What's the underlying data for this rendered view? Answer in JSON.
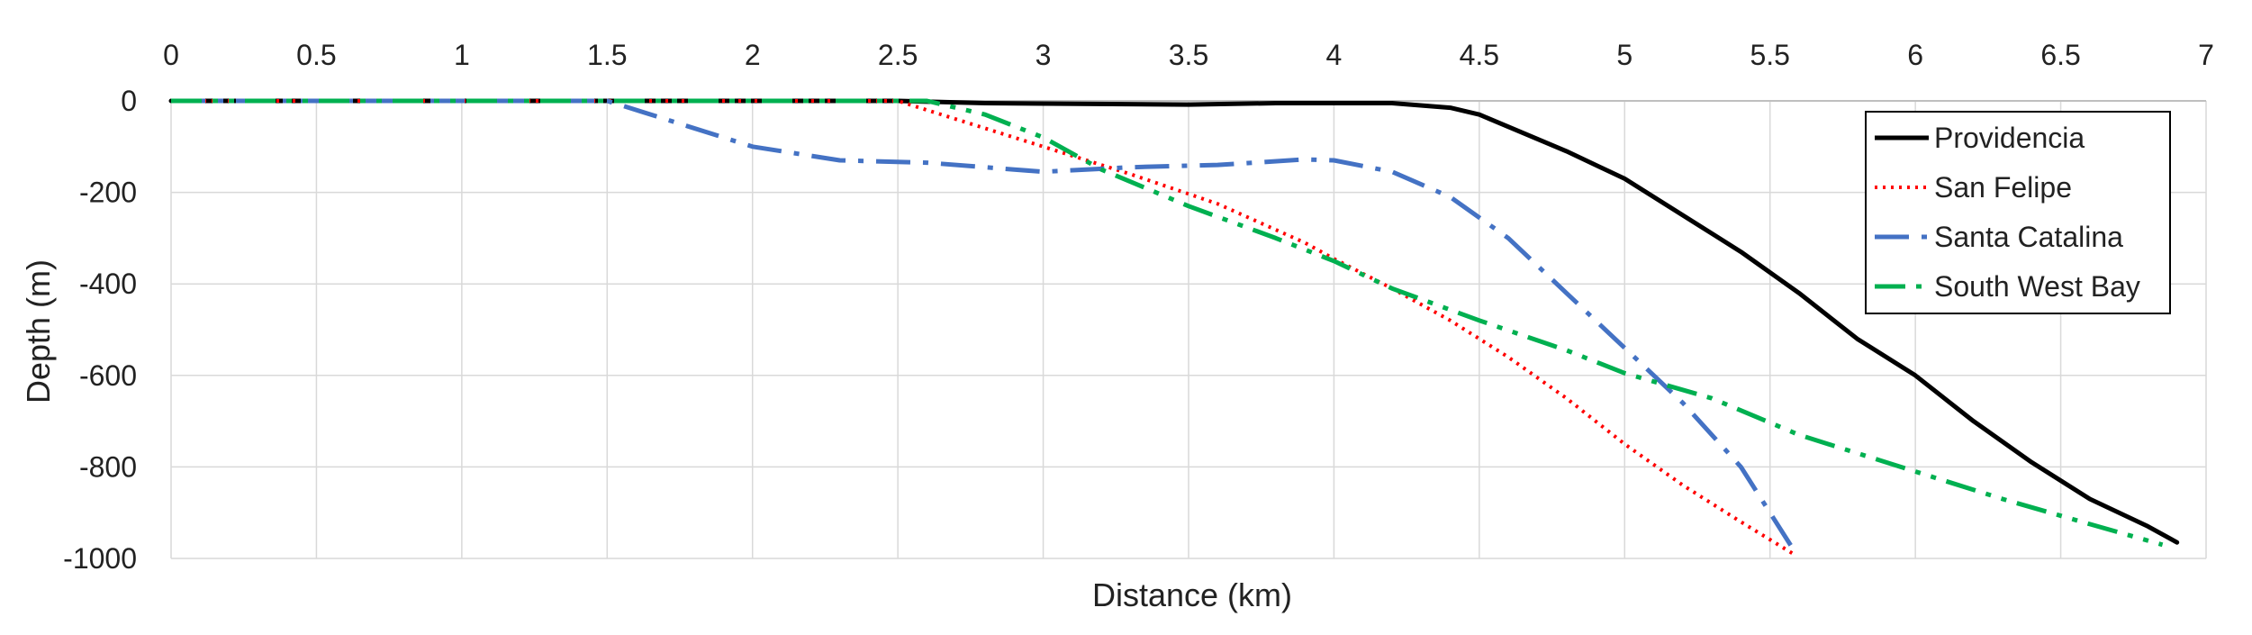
{
  "chart_data": {
    "type": "line",
    "title": "",
    "xlabel": "Distance (km)",
    "ylabel": "Depth (m)",
    "xlim": [
      0,
      7
    ],
    "ylim": [
      -1000,
      0
    ],
    "x_ticks": [
      "0",
      "0.5",
      "1",
      "1.5",
      "2",
      "2.5",
      "3",
      "3.5",
      "4",
      "4.5",
      "5",
      "5.5",
      "6",
      "6.5",
      "7"
    ],
    "y_ticks": [
      "0",
      "-200",
      "-400",
      "-600",
      "-800",
      "-1000"
    ],
    "x_axis_position": "top",
    "grid": true,
    "legend_position": "top-right",
    "series": [
      {
        "name": "Providencia",
        "color": "#000000",
        "style": "solid",
        "points": [
          [
            0,
            0
          ],
          [
            2.5,
            0
          ],
          [
            2.8,
            -5
          ],
          [
            3.5,
            -8
          ],
          [
            3.8,
            -5
          ],
          [
            4.2,
            -5
          ],
          [
            4.4,
            -15
          ],
          [
            4.5,
            -30
          ],
          [
            4.65,
            -70
          ],
          [
            4.8,
            -110
          ],
          [
            5.0,
            -170
          ],
          [
            5.2,
            -250
          ],
          [
            5.4,
            -330
          ],
          [
            5.6,
            -420
          ],
          [
            5.8,
            -520
          ],
          [
            6.0,
            -600
          ],
          [
            6.2,
            -700
          ],
          [
            6.4,
            -790
          ],
          [
            6.6,
            -870
          ],
          [
            6.8,
            -930
          ],
          [
            6.9,
            -965
          ]
        ]
      },
      {
        "name": "San Felipe",
        "color": "#ff0000",
        "style": "dotted",
        "points": [
          [
            0,
            0
          ],
          [
            2.5,
            0
          ],
          [
            2.7,
            -40
          ],
          [
            3.0,
            -100
          ],
          [
            3.3,
            -160
          ],
          [
            3.6,
            -225
          ],
          [
            3.9,
            -310
          ],
          [
            4.0,
            -345
          ],
          [
            4.2,
            -410
          ],
          [
            4.4,
            -480
          ],
          [
            4.6,
            -560
          ],
          [
            4.8,
            -650
          ],
          [
            5.0,
            -750
          ],
          [
            5.2,
            -840
          ],
          [
            5.4,
            -920
          ],
          [
            5.58,
            -990
          ]
        ]
      },
      {
        "name": "Santa Catalina",
        "color": "#4472c4",
        "style": "dashdot",
        "points": [
          [
            0,
            0
          ],
          [
            1.5,
            0
          ],
          [
            1.7,
            -40
          ],
          [
            2.0,
            -100
          ],
          [
            2.3,
            -130
          ],
          [
            2.6,
            -135
          ],
          [
            2.9,
            -150
          ],
          [
            3.0,
            -155
          ],
          [
            3.3,
            -145
          ],
          [
            3.6,
            -140
          ],
          [
            3.9,
            -128
          ],
          [
            4.0,
            -130
          ],
          [
            4.2,
            -155
          ],
          [
            4.4,
            -210
          ],
          [
            4.6,
            -300
          ],
          [
            4.8,
            -420
          ],
          [
            5.0,
            -540
          ],
          [
            5.2,
            -660
          ],
          [
            5.4,
            -800
          ],
          [
            5.58,
            -980
          ]
        ]
      },
      {
        "name": "South West Bay",
        "color": "#00b050",
        "style": "dashdotdot",
        "points": [
          [
            0,
            0
          ],
          [
            2.6,
            0
          ],
          [
            2.8,
            -30
          ],
          [
            3.0,
            -80
          ],
          [
            3.2,
            -150
          ],
          [
            3.5,
            -230
          ],
          [
            3.8,
            -300
          ],
          [
            4.0,
            -350
          ],
          [
            4.2,
            -410
          ],
          [
            4.5,
            -480
          ],
          [
            4.8,
            -545
          ],
          [
            5.0,
            -595
          ],
          [
            5.3,
            -650
          ],
          [
            5.6,
            -730
          ],
          [
            6.0,
            -810
          ],
          [
            6.3,
            -870
          ],
          [
            6.6,
            -925
          ],
          [
            6.85,
            -970
          ]
        ]
      }
    ]
  }
}
